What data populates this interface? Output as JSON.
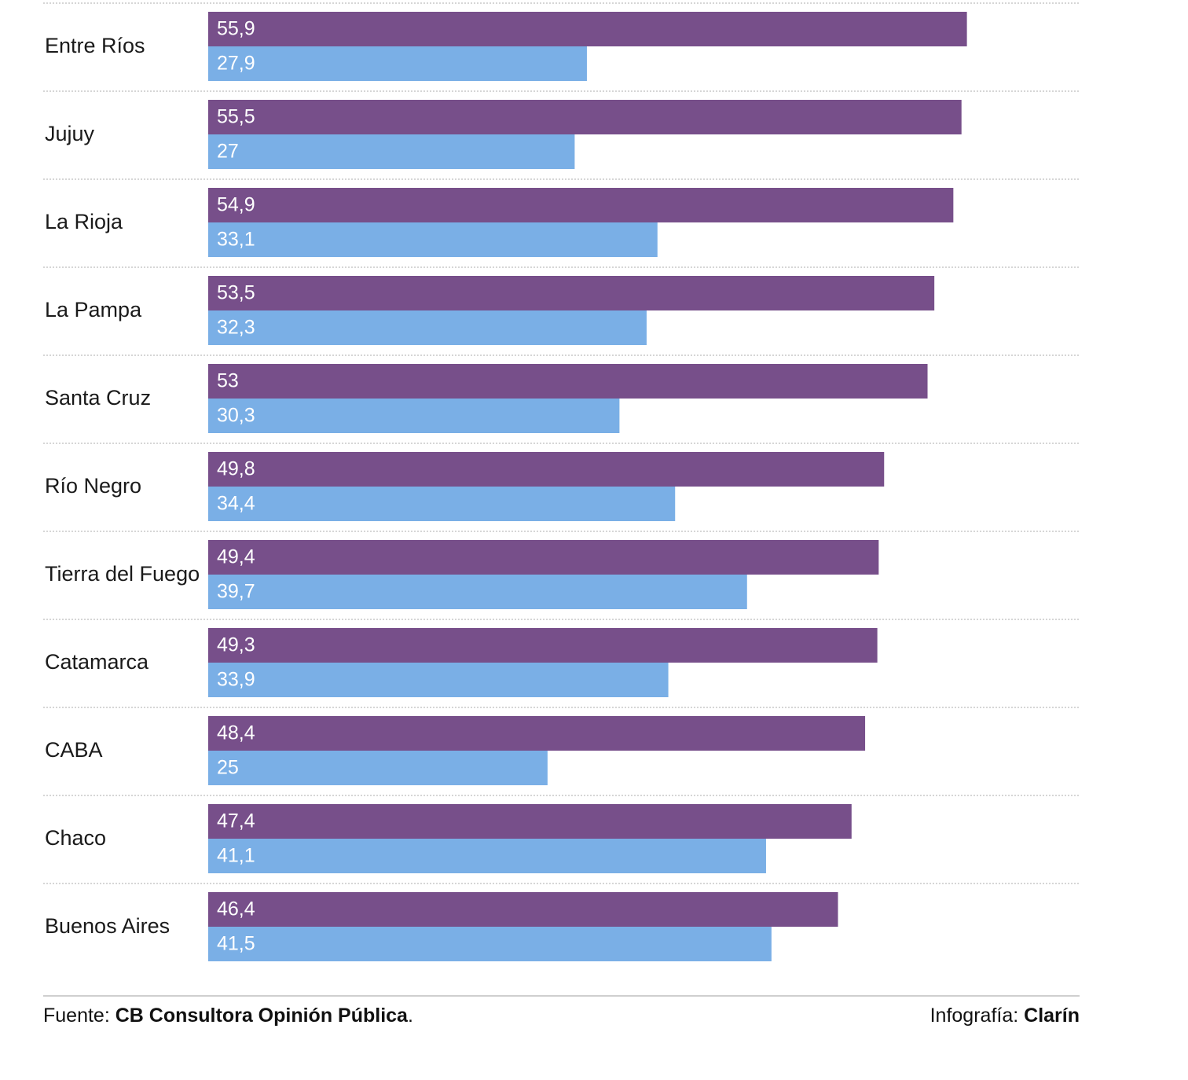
{
  "colors": {
    "series_a": "#774f8a",
    "series_b": "#7aafe6",
    "divider": "#d6d6d6"
  },
  "chart_data": {
    "type": "bar",
    "orientation": "horizontal",
    "categories": [
      "Entre Ríos",
      "Jujuy",
      "La Rioja",
      "La Pampa",
      "Santa Cruz",
      "Río Negro",
      "Tierra del Fuego",
      "Catamarca",
      "CABA",
      "Chaco",
      "Buenos Aires"
    ],
    "series": [
      {
        "values": [
          55.9,
          55.5,
          54.9,
          53.5,
          53,
          49.8,
          49.4,
          49.3,
          48.4,
          47.4,
          46.4
        ],
        "labels": [
          "55,9",
          "55,5",
          "54,9",
          "53,5",
          "53",
          "49,8",
          "49,4",
          "49,3",
          "48,4",
          "47,4",
          "46,4"
        ],
        "color": "#774f8a"
      },
      {
        "values": [
          27.9,
          27,
          33.1,
          32.3,
          30.3,
          34.4,
          39.7,
          33.9,
          25,
          41.1,
          41.5
        ],
        "labels": [
          "27,9",
          "27",
          "33,1",
          "32,3",
          "30,3",
          "34,4",
          "39,7",
          "33,9",
          "25",
          "41,1",
          "41,5"
        ],
        "color": "#7aafe6"
      }
    ],
    "xlim": [
      0,
      64.2
    ],
    "grid": false,
    "legend": "none"
  },
  "footer": {
    "source_prefix": "Fuente: ",
    "source_name": "CB Consultora Opinión Pública",
    "source_suffix": ".",
    "credit_prefix": "Infografía: ",
    "credit_name": "Clarín"
  }
}
